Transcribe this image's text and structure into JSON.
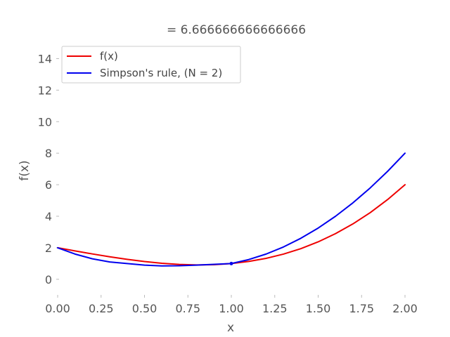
{
  "chart_data": {
    "type": "line",
    "title": "= 6.666666666666666",
    "xlabel": "x",
    "ylabel": "f(x)",
    "xlim": [
      0,
      2
    ],
    "ylim": [
      -0.9,
      14.6
    ],
    "x_ticks": [
      "0.00",
      "0.25",
      "0.50",
      "0.75",
      "1.00",
      "1.25",
      "1.50",
      "1.75",
      "2.00"
    ],
    "y_ticks": [
      "0",
      "2",
      "4",
      "6",
      "8",
      "10",
      "12",
      "14"
    ],
    "grid": false,
    "legend_position": "top-left",
    "series": [
      {
        "name": "f(x)",
        "color": "#ee0000",
        "x": [
          0,
          0.1,
          0.2,
          0.3,
          0.4,
          0.5,
          0.6,
          0.7,
          0.8,
          0.9,
          1.0,
          1.1,
          1.2,
          1.3,
          1.4,
          1.5,
          1.6,
          1.7,
          1.8,
          1.9,
          2.0
        ],
        "y": [
          2.0,
          1.801,
          1.608,
          1.427,
          1.264,
          1.125,
          1.016,
          0.943,
          0.912,
          0.929,
          1.0,
          1.131,
          1.328,
          1.597,
          1.944,
          2.375,
          2.896,
          3.513,
          4.232,
          5.059,
          6.0
        ]
      },
      {
        "name": "Simpson's rule, (N = 2)",
        "color": "#0000ee",
        "x": [
          0,
          0.1,
          0.2,
          0.3,
          0.4,
          0.5,
          0.6,
          0.7,
          0.8,
          0.9,
          1.0,
          1.1,
          1.2,
          1.3,
          1.4,
          1.5,
          1.6,
          1.7,
          1.8,
          1.9,
          2.0
        ],
        "y": [
          2.0,
          1.6,
          1.3,
          1.1,
          1.0,
          0.9,
          0.85,
          0.86,
          0.9,
          0.95,
          1.0,
          1.25,
          1.6,
          2.05,
          2.6,
          3.25,
          4.0,
          4.85,
          5.8,
          6.85,
          8.0
        ]
      }
    ],
    "points": [
      {
        "x": 1.0,
        "y": 1.0,
        "color": "#0000ee"
      }
    ]
  }
}
